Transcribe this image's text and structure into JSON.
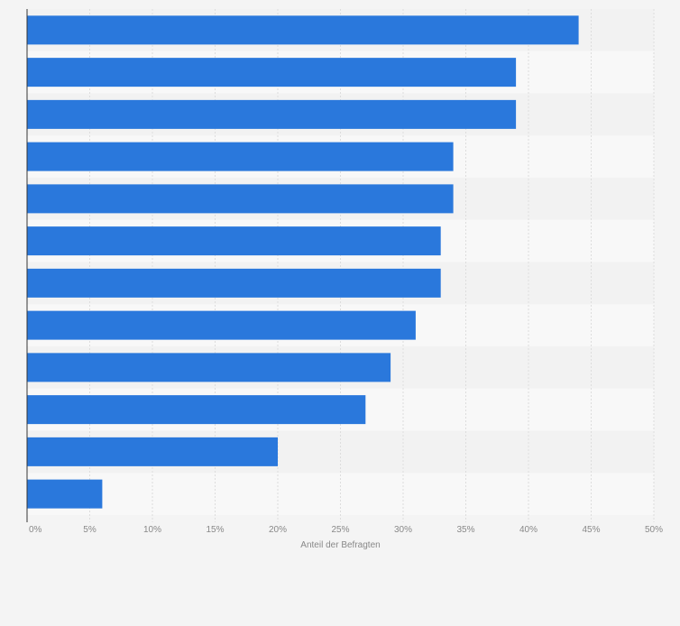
{
  "chart_data": {
    "type": "bar",
    "orientation": "horizontal",
    "title": "",
    "xlabel": "Anteil der Befragten",
    "ylabel": "",
    "xlim": [
      0,
      50
    ],
    "xticks": [
      0,
      5,
      10,
      15,
      20,
      25,
      30,
      35,
      40,
      45,
      50
    ],
    "tick_labels": [
      "0%",
      "5%",
      "10%",
      "15%",
      "20%",
      "25%",
      "30%",
      "35%",
      "40%",
      "45%",
      "50%"
    ],
    "values": [
      44,
      39,
      39,
      34,
      34,
      33,
      33,
      31,
      29,
      27,
      20,
      6
    ],
    "grid": true,
    "legend": "none",
    "colors": {
      "bar": "#2a78dc",
      "background": "#f4f4f4",
      "band_dark": "#f2f2f2",
      "band_light": "#f8f8f8",
      "grid": "#dddddd",
      "axis": "#333333",
      "text": "#888888"
    }
  }
}
